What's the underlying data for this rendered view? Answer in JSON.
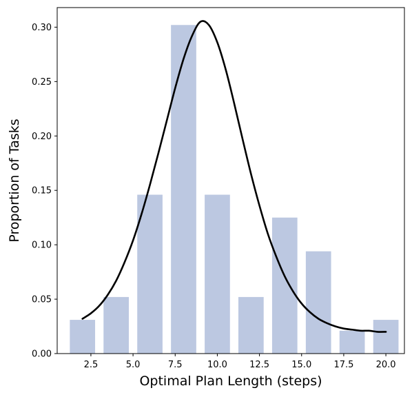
{
  "chart_data": {
    "type": "bar",
    "xlabel": "Optimal Plan Length (steps)",
    "ylabel": "Proportion of Tasks",
    "xlim": [
      0.5,
      21.1
    ],
    "ylim": [
      0,
      0.318
    ],
    "xticks": [
      "2.5",
      "5.0",
      "7.5",
      "10.0",
      "12.5",
      "15.0",
      "17.5",
      "20.0"
    ],
    "yticks": [
      "0.00",
      "0.05",
      "0.10",
      "0.15",
      "0.20",
      "0.25",
      "0.30"
    ],
    "bar_width": 1.5,
    "bar_color": "#bcc8e1",
    "curve_color": "#000000",
    "bars": [
      {
        "x": 2,
        "value": 0.031
      },
      {
        "x": 4,
        "value": 0.052
      },
      {
        "x": 6,
        "value": 0.146
      },
      {
        "x": 8,
        "value": 0.302
      },
      {
        "x": 10,
        "value": 0.146
      },
      {
        "x": 12,
        "value": 0.052
      },
      {
        "x": 14,
        "value": 0.125
      },
      {
        "x": 16,
        "value": 0.094
      },
      {
        "x": 18,
        "value": 0.021
      },
      {
        "x": 20,
        "value": 0.031
      }
    ],
    "curve": {
      "type": "line",
      "x": [
        2,
        2.5,
        3,
        3.5,
        4,
        4.5,
        5,
        5.5,
        6,
        6.5,
        7,
        7.5,
        8,
        8.5,
        9,
        9.5,
        10,
        10.5,
        11,
        11.5,
        12,
        12.5,
        13,
        13.5,
        14,
        14.5,
        15,
        15.5,
        16,
        16.5,
        17,
        17.5,
        18,
        18.5,
        19,
        19.5,
        20
      ],
      "y": [
        0.032,
        0.037,
        0.044,
        0.054,
        0.067,
        0.084,
        0.104,
        0.128,
        0.155,
        0.184,
        0.214,
        0.244,
        0.271,
        0.292,
        0.305,
        0.302,
        0.286,
        0.261,
        0.23,
        0.197,
        0.165,
        0.136,
        0.11,
        0.089,
        0.071,
        0.057,
        0.046,
        0.038,
        0.032,
        0.028,
        0.025,
        0.023,
        0.022,
        0.021,
        0.021,
        0.02,
        0.02
      ]
    }
  }
}
